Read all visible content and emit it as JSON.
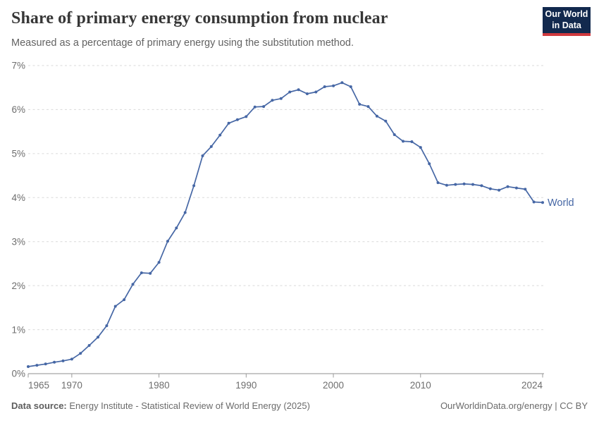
{
  "header": {
    "title": "Share of primary energy consumption from nuclear",
    "subtitle": "Measured as a percentage of primary energy using the substitution method.",
    "logo": {
      "line1": "Our World",
      "line2": "in Data",
      "bg_color": "#12294E",
      "stripe_color": "#D0393E"
    }
  },
  "chart_data": {
    "type": "line",
    "title": "Share of primary energy consumption from nuclear",
    "subtitle": "Measured as a percentage of primary energy using the substitution method.",
    "xlabel": "",
    "ylabel": "",
    "xlim": [
      1965,
      2024
    ],
    "ylim": [
      0,
      7
    ],
    "x_ticks": [
      1965,
      1970,
      1980,
      1990,
      2000,
      2010,
      2024
    ],
    "y_ticks": [
      0,
      1,
      2,
      3,
      4,
      5,
      6,
      7
    ],
    "y_tick_suffix": "%",
    "grid": "horizontal-dashed",
    "legend_position": "end-of-line",
    "series": [
      {
        "name": "World",
        "color": "#4667A5",
        "x": [
          1965,
          1966,
          1967,
          1968,
          1969,
          1970,
          1971,
          1972,
          1973,
          1974,
          1975,
          1976,
          1977,
          1978,
          1979,
          1980,
          1981,
          1982,
          1983,
          1984,
          1985,
          1986,
          1987,
          1988,
          1989,
          1990,
          1991,
          1992,
          1993,
          1994,
          1995,
          1996,
          1997,
          1998,
          1999,
          2000,
          2001,
          2002,
          2003,
          2004,
          2005,
          2006,
          2007,
          2008,
          2009,
          2010,
          2011,
          2012,
          2013,
          2014,
          2015,
          2016,
          2017,
          2018,
          2019,
          2020,
          2021,
          2022,
          2023,
          2024
        ],
        "values": [
          0.16,
          0.19,
          0.22,
          0.26,
          0.29,
          0.33,
          0.46,
          0.64,
          0.83,
          1.09,
          1.53,
          1.68,
          2.03,
          2.29,
          2.28,
          2.53,
          3.01,
          3.31,
          3.66,
          4.27,
          4.95,
          5.16,
          5.42,
          5.69,
          5.77,
          5.84,
          6.06,
          6.07,
          6.21,
          6.25,
          6.4,
          6.45,
          6.36,
          6.4,
          6.52,
          6.54,
          6.61,
          6.52,
          6.12,
          6.07,
          5.85,
          5.74,
          5.43,
          5.28,
          5.27,
          5.14,
          4.77,
          4.34,
          4.28,
          4.3,
          4.31,
          4.3,
          4.27,
          4.2,
          4.17,
          4.25,
          4.22,
          4.19,
          3.9,
          3.89
        ]
      }
    ]
  },
  "footer": {
    "source_label": "Data source:",
    "source_text": "Energy Institute - Statistical Review of World Energy (2025)",
    "attribution": "OurWorldinData.org/energy | CC BY"
  }
}
